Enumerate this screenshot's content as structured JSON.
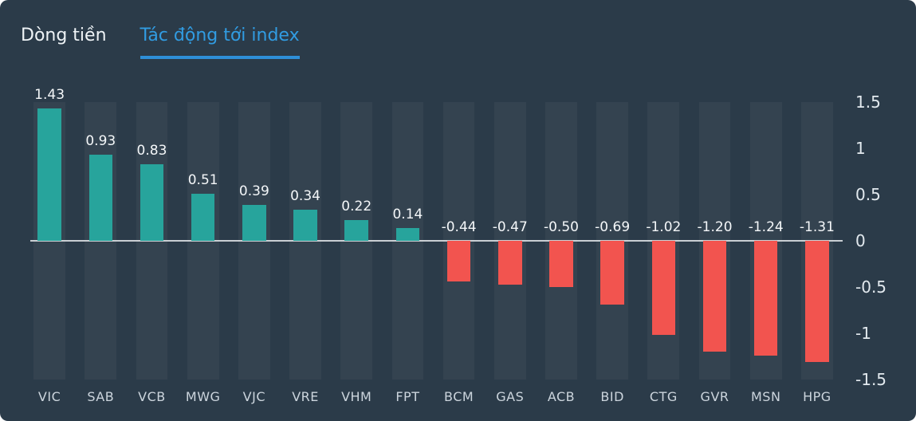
{
  "tabs": [
    {
      "label": "Dòng tiền",
      "active": false
    },
    {
      "label": "Tác động tới index",
      "active": true
    }
  ],
  "colors": {
    "background": "#2b3b49",
    "positive": "#27a49c",
    "negative": "#f2544f",
    "active_tab": "#319ce2",
    "zero_line": "#c9ced3",
    "column_band": "rgba(255,255,255,0.045)"
  },
  "chart_data": {
    "type": "bar",
    "title": "Tác động tới index",
    "categories": [
      "VIC",
      "SAB",
      "VCB",
      "MWG",
      "VJC",
      "VRE",
      "VHM",
      "FPT",
      "BCM",
      "GAS",
      "ACB",
      "BID",
      "CTG",
      "GVR",
      "MSN",
      "HPG"
    ],
    "values": [
      1.43,
      0.93,
      0.83,
      0.51,
      0.39,
      0.34,
      0.22,
      0.14,
      -0.44,
      -0.47,
      -0.5,
      -0.69,
      -1.02,
      -1.2,
      -1.24,
      -1.31
    ],
    "value_labels": [
      "1.43",
      "0.93",
      "0.83",
      "0.51",
      "0.39",
      "0.34",
      "0.22",
      "0.14",
      "-0.44",
      "-0.47",
      "-0.50",
      "-0.69",
      "-1.02",
      "-1.20",
      "-1.24",
      "-1.31"
    ],
    "yticks": [
      "1.5",
      "1",
      "0.5",
      "0",
      "-0.5",
      "-1",
      "-1.5"
    ],
    "ylim": [
      -1.5,
      1.5
    ],
    "xlabel": "",
    "ylabel": "",
    "grid": false,
    "legend": null,
    "yaxis_position": "right"
  }
}
